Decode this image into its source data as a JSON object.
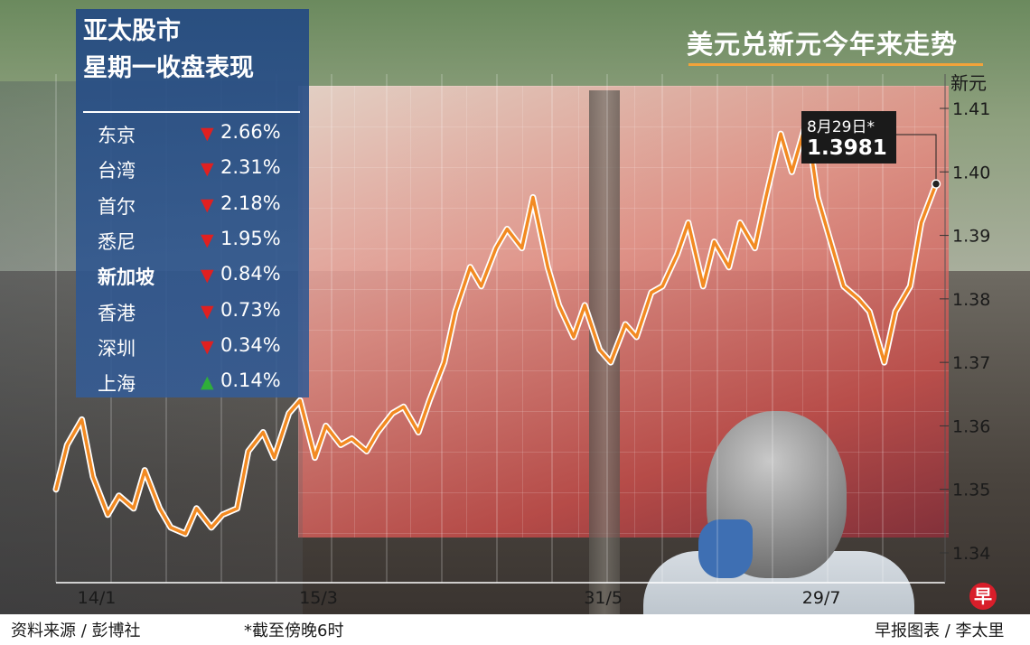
{
  "title": "美元兑新元今年来走势",
  "y_unit": "新元",
  "callout": {
    "date": "8月29日*",
    "value": "1.3981"
  },
  "panel": {
    "title_line1": "亚太股市",
    "title_line2": "星期一收盘表现",
    "rows": [
      {
        "name": "东京",
        "change": "2.66%",
        "direction": "down",
        "value": -2.66
      },
      {
        "name": "台湾",
        "change": "2.31%",
        "direction": "down",
        "value": -2.31
      },
      {
        "name": "首尔",
        "change": "2.18%",
        "direction": "down",
        "value": -2.18
      },
      {
        "name": "悉尼",
        "change": "1.95%",
        "direction": "down",
        "value": -1.95
      },
      {
        "name": "新加坡",
        "change": "0.84%",
        "direction": "down",
        "value": -0.84
      },
      {
        "name": "香港",
        "change": "0.73%",
        "direction": "down",
        "value": -0.73
      },
      {
        "name": "深圳",
        "change": "0.34%",
        "direction": "down",
        "value": -0.34
      },
      {
        "name": "上海",
        "change": "0.14%",
        "direction": "up",
        "value": 0.14
      }
    ]
  },
  "footer": {
    "source": "资料来源 / 彭博社",
    "note": "*截至傍晚6时",
    "credit": "早报图表 / 李太里"
  },
  "logo_text": "早",
  "colors": {
    "line": "#f28a22",
    "down": "#e02020",
    "up": "#2fae3a",
    "panel": "#2c5a9a",
    "accent": "#f2a33a"
  },
  "chart_data": {
    "type": "line",
    "title": "美元兑新元今年来走势",
    "ylabel": "新元",
    "ylim": [
      1.335,
      1.415
    ],
    "y_ticks": [
      "1.34",
      "1.35",
      "1.36",
      "1.37",
      "1.38",
      "1.39",
      "1.40",
      "1.41"
    ],
    "x_ticks": [
      "14/1",
      "15/3",
      "31/5",
      "29/7"
    ],
    "x_tick_values": [
      "2022-01-14",
      "2022-03-15",
      "2022-05-31",
      "2022-07-29"
    ],
    "grid": true,
    "series": [
      {
        "x": [
          "2022-01-03",
          "2022-01-06",
          "2022-01-10",
          "2022-01-13",
          "2022-01-17",
          "2022-01-20",
          "2022-01-24",
          "2022-01-27",
          "2022-01-31",
          "2022-02-03",
          "2022-02-07",
          "2022-02-10",
          "2022-02-14",
          "2022-02-17",
          "2022-02-21",
          "2022-02-24",
          "2022-02-28",
          "2022-03-03",
          "2022-03-07",
          "2022-03-10",
          "2022-03-14",
          "2022-03-17",
          "2022-03-21",
          "2022-03-24",
          "2022-03-28",
          "2022-03-31",
          "2022-04-04",
          "2022-04-07",
          "2022-04-11",
          "2022-04-14",
          "2022-04-18",
          "2022-04-21",
          "2022-04-25",
          "2022-04-28",
          "2022-05-02",
          "2022-05-05",
          "2022-05-09",
          "2022-05-12",
          "2022-05-16",
          "2022-05-19",
          "2022-05-23",
          "2022-05-26",
          "2022-05-30",
          "2022-06-02",
          "2022-06-06",
          "2022-06-09",
          "2022-06-13",
          "2022-06-16",
          "2022-06-20",
          "2022-06-23",
          "2022-06-27",
          "2022-06-30",
          "2022-07-04",
          "2022-07-07",
          "2022-07-11",
          "2022-07-14",
          "2022-07-18",
          "2022-07-21",
          "2022-07-25",
          "2022-07-28",
          "2022-08-01",
          "2022-08-04",
          "2022-08-08",
          "2022-08-11",
          "2022-08-15",
          "2022-08-18",
          "2022-08-22",
          "2022-08-25",
          "2022-08-29"
        ],
        "values": [
          1.35,
          1.357,
          1.361,
          1.352,
          1.346,
          1.349,
          1.347,
          1.353,
          1.347,
          1.344,
          1.343,
          1.347,
          1.344,
          1.346,
          1.347,
          1.356,
          1.359,
          1.355,
          1.362,
          1.364,
          1.355,
          1.36,
          1.357,
          1.358,
          1.356,
          1.359,
          1.362,
          1.363,
          1.359,
          1.364,
          1.37,
          1.378,
          1.385,
          1.382,
          1.388,
          1.391,
          1.388,
          1.396,
          1.385,
          1.379,
          1.374,
          1.379,
          1.372,
          1.37,
          1.376,
          1.374,
          1.381,
          1.382,
          1.387,
          1.392,
          1.382,
          1.389,
          1.385,
          1.392,
          1.388,
          1.396,
          1.406,
          1.4,
          1.408,
          1.396,
          1.388,
          1.382,
          1.38,
          1.378,
          1.37,
          1.378,
          1.382,
          1.392,
          1.3981
        ]
      }
    ]
  }
}
